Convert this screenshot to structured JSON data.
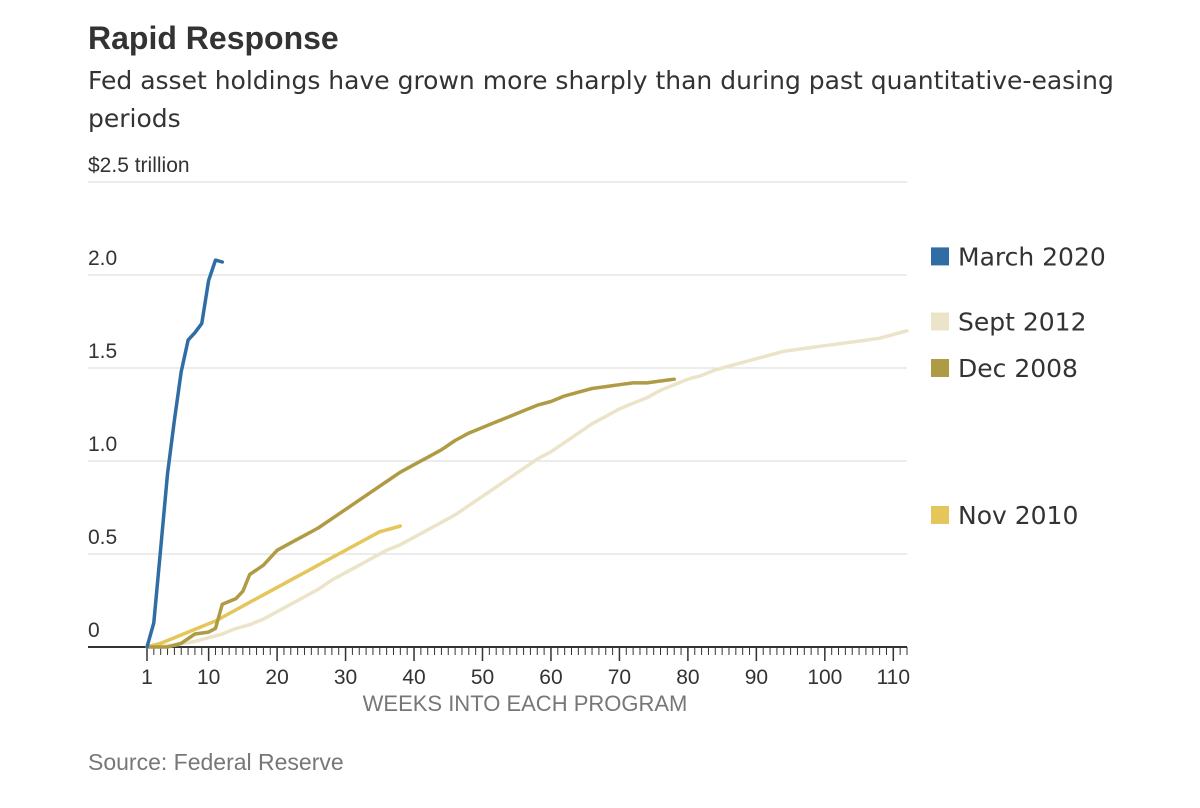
{
  "chart_data": {
    "type": "line",
    "title": "Rapid Response",
    "subtitle": "Fed asset holdings have grown more sharply than during past quantitative-easing periods",
    "source": "Source: Federal Reserve",
    "xlabel": "WEEKS INTO EACH PROGRAM",
    "xlim": [
      1,
      112
    ],
    "ylim": [
      0,
      2.5
    ],
    "x_ticks": [
      1,
      10,
      20,
      30,
      40,
      50,
      60,
      70,
      80,
      90,
      100,
      110
    ],
    "y_ticks": [
      {
        "value": 0,
        "label": "0"
      },
      {
        "value": 0.5,
        "label": "0.5"
      },
      {
        "value": 1.0,
        "label": "1.0"
      },
      {
        "value": 1.5,
        "label": "1.5"
      },
      {
        "value": 2.0,
        "label": "2.0"
      },
      {
        "value": 2.5,
        "label": "$2.5 trillion"
      }
    ],
    "grid": true,
    "legend": [
      {
        "name": "March 2020",
        "color": "#2f6da4",
        "y": 2.1
      },
      {
        "name": "Sept 2012",
        "color": "#ece4c9",
        "y": 1.75
      },
      {
        "name": "Dec 2008",
        "color": "#b09b45",
        "y": 1.5
      },
      {
        "name": "Nov 2010",
        "color": "#e4c65a",
        "y": 0.71
      }
    ],
    "series": [
      {
        "name": "March 2020",
        "color": "#2f6da4",
        "x": [
          1,
          2,
          3,
          4,
          5,
          6,
          7,
          8,
          9,
          10,
          11,
          12
        ],
        "values": [
          0,
          0.13,
          0.53,
          0.93,
          1.22,
          1.48,
          1.65,
          1.69,
          1.74,
          1.97,
          2.08,
          2.07
        ]
      },
      {
        "name": "Sept 2012",
        "color": "#ece4c9",
        "x": [
          1,
          5,
          8,
          10,
          12,
          14,
          16,
          18,
          20,
          22,
          24,
          26,
          28,
          30,
          32,
          34,
          36,
          38,
          40,
          42,
          44,
          46,
          48,
          50,
          52,
          54,
          56,
          58,
          60,
          62,
          64,
          66,
          68,
          70,
          72,
          74,
          76,
          78,
          80,
          82,
          84,
          86,
          88,
          90,
          92,
          94,
          96,
          98,
          100,
          102,
          104,
          106,
          108,
          110,
          112
        ],
        "values": [
          0,
          0.01,
          0.03,
          0.05,
          0.07,
          0.1,
          0.12,
          0.15,
          0.19,
          0.23,
          0.27,
          0.31,
          0.36,
          0.4,
          0.44,
          0.48,
          0.52,
          0.55,
          0.59,
          0.63,
          0.67,
          0.71,
          0.76,
          0.81,
          0.86,
          0.91,
          0.96,
          1.01,
          1.05,
          1.1,
          1.15,
          1.2,
          1.24,
          1.28,
          1.31,
          1.34,
          1.38,
          1.41,
          1.44,
          1.46,
          1.49,
          1.51,
          1.53,
          1.55,
          1.57,
          1.59,
          1.6,
          1.61,
          1.62,
          1.63,
          1.64,
          1.65,
          1.66,
          1.68,
          1.7
        ]
      },
      {
        "name": "Dec 2008",
        "color": "#b09b45",
        "x": [
          1,
          4,
          6,
          8,
          10,
          11,
          12,
          14,
          15,
          16,
          18,
          20,
          22,
          24,
          26,
          28,
          30,
          32,
          34,
          36,
          38,
          40,
          42,
          44,
          46,
          48,
          50,
          52,
          54,
          56,
          58,
          60,
          62,
          64,
          66,
          68,
          70,
          72,
          74,
          76,
          78
        ],
        "values": [
          0,
          0,
          0.02,
          0.07,
          0.08,
          0.1,
          0.23,
          0.26,
          0.3,
          0.39,
          0.44,
          0.52,
          0.56,
          0.6,
          0.64,
          0.69,
          0.74,
          0.79,
          0.84,
          0.89,
          0.94,
          0.98,
          1.02,
          1.06,
          1.11,
          1.15,
          1.18,
          1.21,
          1.24,
          1.27,
          1.3,
          1.32,
          1.35,
          1.37,
          1.39,
          1.4,
          1.41,
          1.42,
          1.42,
          1.43,
          1.44
        ]
      },
      {
        "name": "Nov 2010",
        "color": "#e4c65a",
        "x": [
          1,
          3,
          5,
          7,
          9,
          11,
          13,
          15,
          17,
          19,
          21,
          23,
          25,
          27,
          29,
          31,
          33,
          35,
          37,
          38
        ],
        "values": [
          0,
          0.02,
          0.05,
          0.08,
          0.11,
          0.14,
          0.18,
          0.22,
          0.26,
          0.3,
          0.34,
          0.38,
          0.42,
          0.46,
          0.5,
          0.54,
          0.58,
          0.62,
          0.64,
          0.65
        ]
      }
    ]
  }
}
